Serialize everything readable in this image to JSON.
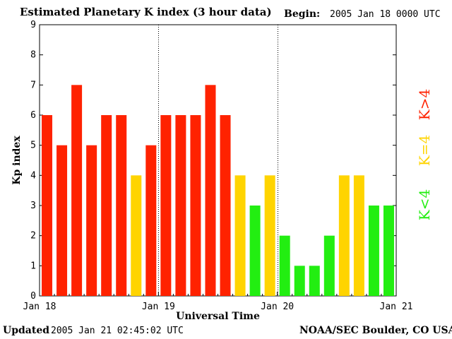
{
  "header": {
    "title": "Estimated Planetary K index (3 hour data)",
    "begin_label": "Begin:",
    "begin_value": "2005 Jan 18 0000 UTC"
  },
  "footer": {
    "updated_label": "Updated",
    "updated_value": "2005 Jan 21 02:45:02 UTC",
    "credit": "NOAA/SEC Boulder, CO USA"
  },
  "colors": {
    "high": "#ff2200",
    "mid": "#ffd400",
    "low": "#22ee11",
    "axis": "#000000"
  },
  "chart_data": {
    "type": "bar",
    "title": "Estimated Planetary K index (3 hour data)",
    "xlabel": "Universal Time",
    "ylabel": "Kp index",
    "ylim": [
      0,
      9
    ],
    "yticks": [
      0,
      1,
      2,
      3,
      4,
      5,
      6,
      7,
      8,
      9
    ],
    "bars_per_day": 8,
    "day_labels": [
      "Jan 18",
      "Jan 19",
      "Jan 20",
      "Jan 21"
    ],
    "values": [
      6,
      5,
      7,
      5,
      6,
      6,
      4,
      5,
      6,
      6,
      6,
      7,
      6,
      4,
      3,
      4,
      2,
      1,
      1,
      2,
      4,
      4,
      3,
      3
    ],
    "legend": [
      {
        "label": "K>4",
        "color_key": "high"
      },
      {
        "label": "K=4",
        "color_key": "mid"
      },
      {
        "label": "K<4",
        "color_key": "low"
      }
    ]
  }
}
